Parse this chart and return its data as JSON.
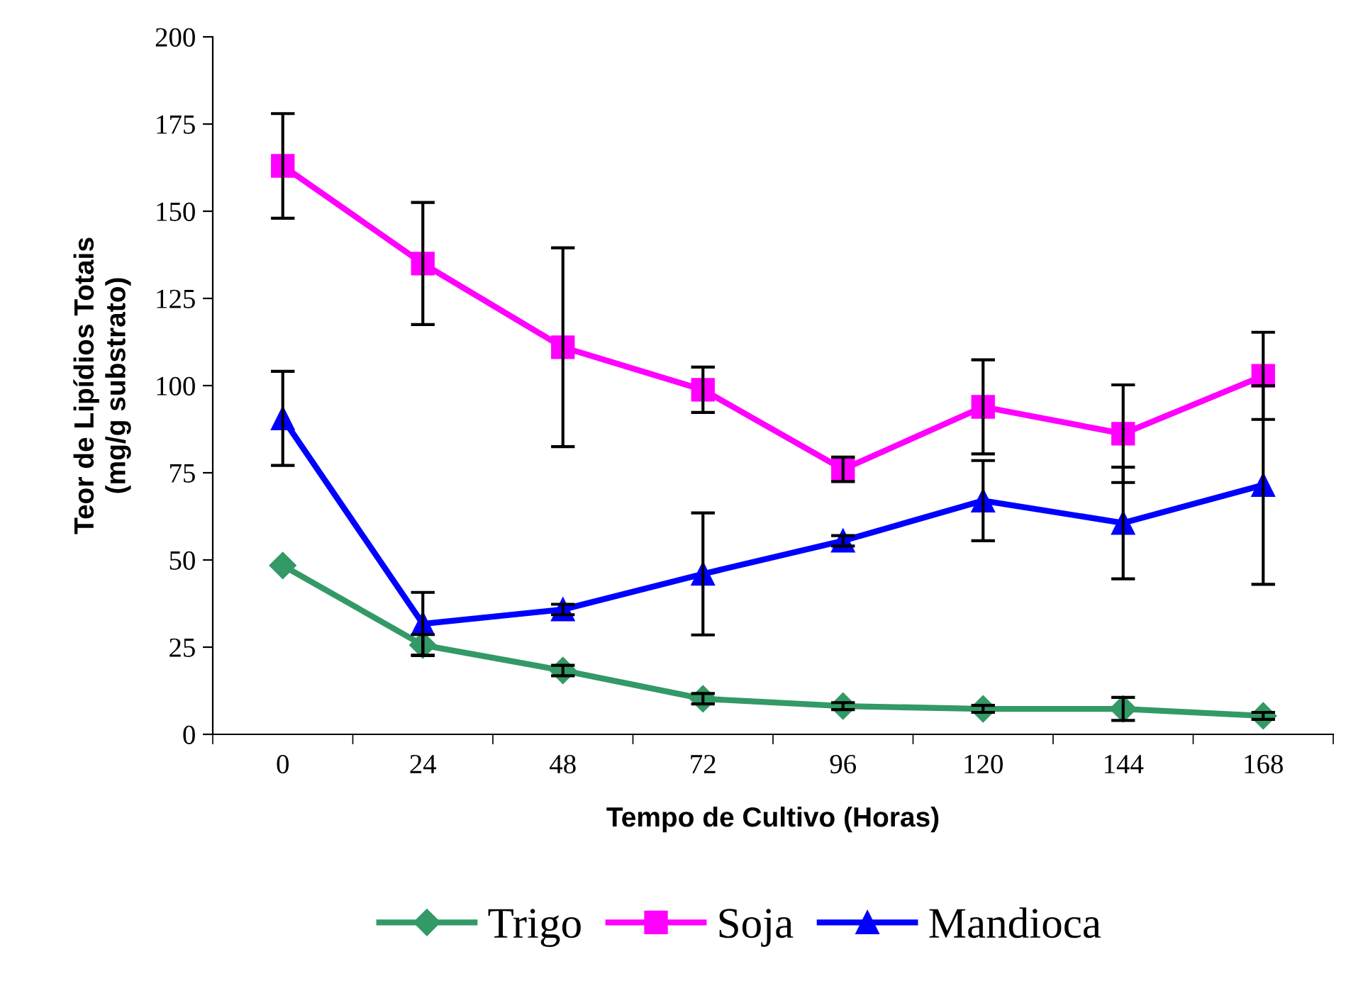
{
  "chart_data": {
    "type": "line",
    "xlabel": "Tempo de Cultivo (Horas)",
    "ylabel": "Teor de Lipídios Totais\n(mg/g substrato)",
    "categories": [
      "0",
      "24",
      "48",
      "72",
      "96",
      "120",
      "144",
      "168"
    ],
    "ylim": [
      0,
      200
    ],
    "yticks": [
      0,
      25,
      50,
      75,
      100,
      125,
      150,
      175,
      200
    ],
    "grid": false,
    "legend": "bottom",
    "series": [
      {
        "name": "Trigo",
        "color": "#339966",
        "marker": "diamond",
        "values": [
          48.4,
          25.6,
          18.3,
          10.2,
          8.1,
          7.3,
          7.3,
          5.3
        ],
        "errors": [
          null,
          3,
          1.5,
          1.5,
          1,
          1,
          3.3,
          1
        ]
      },
      {
        "name": "Soja",
        "color": "#ff00ff",
        "marker": "square",
        "values": [
          163,
          135,
          111,
          98.8,
          76,
          93.9,
          86.2,
          102.8
        ],
        "errors": [
          15,
          17.5,
          28.5,
          6.5,
          3.5,
          13.5,
          14,
          12.5
        ]
      },
      {
        "name": "Mandioca",
        "color": "#0000ff",
        "marker": "triangle",
        "values": [
          90.6,
          31.7,
          35.8,
          46,
          55.5,
          67,
          60.6,
          71.5
        ],
        "errors": [
          13.5,
          9,
          1.5,
          17.5,
          1.5,
          11.5,
          16,
          28.5
        ]
      }
    ]
  }
}
